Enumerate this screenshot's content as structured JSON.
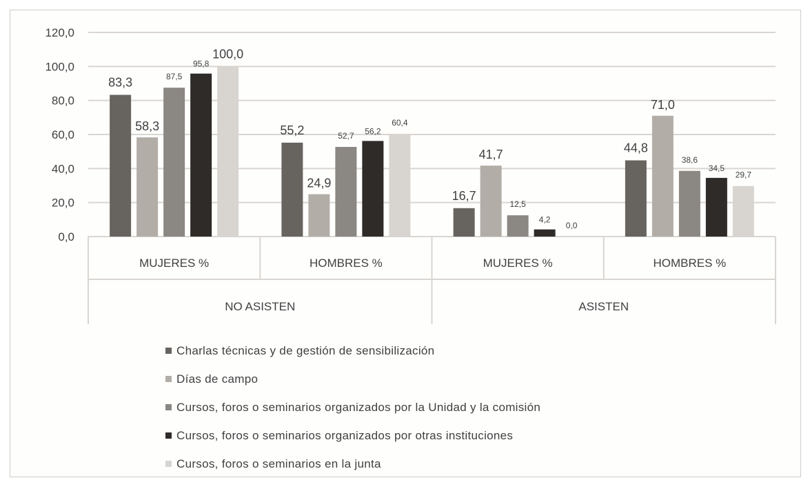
{
  "chart_data": {
    "type": "bar",
    "groups": [
      {
        "label": "NO ASISTEN",
        "categories": [
          "MUJERES %",
          "HOMBRES %"
        ]
      },
      {
        "label": "ASISTEN",
        "categories": [
          "MUJERES %",
          "HOMBRES %"
        ]
      }
    ],
    "categories": [
      "NO ASISTEN - MUJERES %",
      "NO ASISTEN - HOMBRES %",
      "ASISTEN - MUJERES %",
      "ASISTEN - HOMBRES %"
    ],
    "series": [
      {
        "name": "Charlas técnicas y de gestión de sensibilización",
        "color": "#67645f",
        "values": [
          83.3,
          55.2,
          16.7,
          44.8
        ],
        "labels": [
          "83,3",
          "55,2",
          "16,7",
          "44,8"
        ]
      },
      {
        "name": "Días de campo",
        "color": "#b3ada7",
        "values": [
          58.3,
          24.9,
          41.7,
          71.0
        ],
        "labels": [
          "58,3",
          "24,9",
          "41,7",
          "71,0"
        ]
      },
      {
        "name": "Cursos, foros o seminarios organizados por la Unidad y la comisión",
        "color": "#8b8782",
        "values": [
          87.5,
          52.7,
          12.5,
          38.6
        ],
        "labels": [
          "87,5",
          "52,7",
          "12,5",
          "38,6"
        ]
      },
      {
        "name": "Cursos, foros o seminarios organizados por otras instituciones",
        "color": "#2e2b29",
        "values": [
          95.8,
          56.2,
          4.2,
          34.5
        ],
        "labels": [
          "95,8",
          "56,2",
          "4,2",
          "34,5"
        ]
      },
      {
        "name": "Cursos, foros o seminarios en la junta",
        "color": "#d8d5d1",
        "values": [
          100.0,
          60.4,
          0.0,
          29.7
        ],
        "labels": [
          "100,0",
          "60,4",
          "0,0",
          "29,7"
        ]
      }
    ],
    "yticks": [
      "0,0",
      "20,0",
      "40,0",
      "60,0",
      "80,0",
      "100,0",
      "120,0"
    ],
    "ylim": [
      0,
      120
    ],
    "grid": true,
    "legend": "bottom"
  }
}
